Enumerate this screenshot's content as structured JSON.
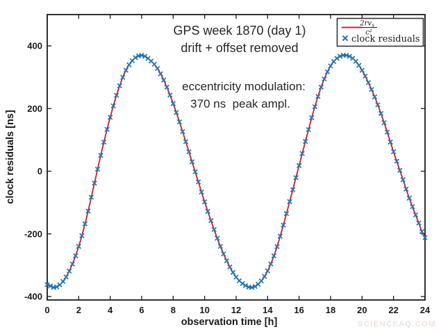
{
  "figure": {
    "title_line1": "GPS week 1870 (day 1)",
    "title_line2": "drift + offset removed",
    "annotation_line1": "eccentricity modulation:",
    "annotation_line2": "370 ns  peak ampl.",
    "xlabel": "observation time [h]",
    "ylabel": "clock residuals [ns]",
    "watermark": "SCIENCEAQ.COM",
    "legend": {
      "formula_numerator": "2rv",
      "formula_numerator_sub": "s",
      "formula_denominator": "c²",
      "label2": "clock residuals"
    }
  },
  "style": {
    "axis_color": "#1a1a1a",
    "text_color": "#262626",
    "line_red": "#cb2633",
    "marker_blue": "#1f77b4",
    "watermark_color": "#f2d0d0",
    "background": "#ffffff"
  },
  "chart_data": {
    "type": "line",
    "title": "GPS week 1870 (day 1) / drift + offset removed",
    "xlabel": "observation time [h]",
    "ylabel": "clock residuals [ns]",
    "xlim": [
      0,
      24
    ],
    "ylim": [
      -411,
      500
    ],
    "xticks": [
      0,
      2,
      4,
      6,
      8,
      10,
      12,
      14,
      16,
      18,
      20,
      22,
      24
    ],
    "yticks": [
      -400,
      -200,
      0,
      200,
      400
    ],
    "grid": false,
    "legend_position": "top-right",
    "annotations": [
      "eccentricity modulation: 370 ns peak ampl."
    ],
    "peak_amplitude_ns": 370,
    "series": [
      {
        "name": "2rv_s/c^2 model",
        "type": "line",
        "color": "#cb2633",
        "points": [
          [
            0.0,
            -362
          ],
          [
            0.5,
            -371
          ],
          [
            1.0,
            -352
          ],
          [
            1.5,
            -308
          ],
          [
            2.0,
            -240
          ],
          [
            2.5,
            -148
          ],
          [
            3.0,
            -38
          ],
          [
            3.5,
            72
          ],
          [
            4.0,
            172
          ],
          [
            4.5,
            258
          ],
          [
            5.0,
            322
          ],
          [
            5.5,
            358
          ],
          [
            6.0,
            370
          ],
          [
            6.5,
            356
          ],
          [
            7.0,
            328
          ],
          [
            7.5,
            280
          ],
          [
            8.0,
            216
          ],
          [
            8.5,
            142
          ],
          [
            9.0,
            62
          ],
          [
            9.5,
            -18
          ],
          [
            10.0,
            -98
          ],
          [
            10.5,
            -172
          ],
          [
            11.0,
            -240
          ],
          [
            11.5,
            -296
          ],
          [
            12.0,
            -338
          ],
          [
            12.5,
            -362
          ],
          [
            13.0,
            -371
          ],
          [
            13.5,
            -356
          ],
          [
            14.0,
            -318
          ],
          [
            14.5,
            -256
          ],
          [
            15.0,
            -172
          ],
          [
            15.5,
            -78
          ],
          [
            16.0,
            18
          ],
          [
            16.5,
            114
          ],
          [
            17.0,
            206
          ],
          [
            17.5,
            282
          ],
          [
            18.0,
            336
          ],
          [
            18.5,
            364
          ],
          [
            19.0,
            370
          ],
          [
            19.5,
            356
          ],
          [
            20.0,
            322
          ],
          [
            20.5,
            272
          ],
          [
            21.0,
            212
          ],
          [
            21.5,
            140
          ],
          [
            22.0,
            62
          ],
          [
            22.5,
            -12
          ],
          [
            23.0,
            -86
          ],
          [
            23.5,
            -152
          ],
          [
            24.0,
            -212
          ]
        ]
      },
      {
        "name": "clock residuals",
        "type": "scatter",
        "marker": "x",
        "color": "#1f77b4",
        "marker_interval_h": 0.2,
        "note": "markers lie on the model curve"
      }
    ]
  }
}
